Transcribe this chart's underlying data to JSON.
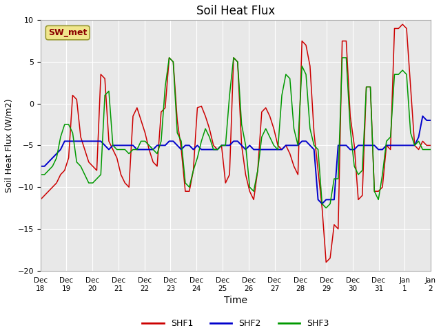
{
  "title": "Soil Heat Flux",
  "xlabel": "Time",
  "ylabel": "Soil Heat Flux (W/m2)",
  "ylim": [
    -20,
    10
  ],
  "background_color": "#e8e8e8",
  "figure_bg": "#ffffff",
  "legend_label": "SW_met",
  "legend_text_color": "#8B0000",
  "legend_box_color": "#f0e68c",
  "series_labels": [
    "SHF1",
    "SHF2",
    "SHF3"
  ],
  "series_colors": [
    "#cc0000",
    "#0000cc",
    "#009900"
  ],
  "xtick_labels": [
    "Dec 18",
    "Dec 19",
    "Dec 20",
    "Dec 21",
    "Dec 22",
    "Dec 23",
    "Dec 24",
    "Dec 25",
    "Dec 26",
    "Dec 27",
    "Dec 28",
    "Dec 29",
    "Dec 30",
    "Dec 31",
    "Jan 1",
    "Jan 2"
  ],
  "shf1": [
    -11.5,
    -11.0,
    -10.5,
    -10.0,
    -9.5,
    -8.5,
    -8.0,
    -6.5,
    1.0,
    0.5,
    -4.0,
    -5.5,
    -7.0,
    -7.5,
    -8.0,
    3.5,
    3.0,
    -4.5,
    -5.5,
    -6.5,
    -8.5,
    -9.5,
    -10.0,
    -1.5,
    -0.5,
    -2.0,
    -3.5,
    -5.5,
    -7.0,
    -7.5,
    -1.0,
    -0.5,
    5.5,
    5.0,
    -2.0,
    -5.5,
    -10.5,
    -10.5,
    -8.0,
    -0.5,
    -0.3,
    -1.5,
    -3.0,
    -5.0,
    -5.5,
    -5.0,
    -9.5,
    -8.5,
    5.5,
    5.0,
    -5.0,
    -8.5,
    -10.5,
    -11.5,
    -8.0,
    -1.0,
    -0.5,
    -1.5,
    -3.0,
    -5.0,
    -5.5,
    -5.0,
    -6.0,
    -7.5,
    -8.5,
    7.5,
    7.0,
    4.5,
    -3.5,
    -8.0,
    -12.5,
    -19.0,
    -18.5,
    -14.5,
    -15.0,
    7.5,
    7.5,
    -1.5,
    -5.0,
    -11.5,
    -11.0,
    2.0,
    2.0,
    -10.5,
    -10.5,
    -10.0,
    -5.0,
    -5.5,
    9.0,
    9.0,
    9.5,
    9.0,
    2.0,
    -5.0,
    -5.5,
    -4.5,
    -5.0,
    -5.0
  ],
  "shf2": [
    -7.5,
    -7.5,
    -7.0,
    -6.5,
    -6.0,
    -5.5,
    -4.5,
    -4.5,
    -4.5,
    -4.5,
    -4.5,
    -4.5,
    -4.5,
    -4.5,
    -4.5,
    -4.5,
    -5.0,
    -5.5,
    -5.0,
    -5.0,
    -5.0,
    -5.0,
    -5.0,
    -5.0,
    -5.5,
    -5.5,
    -5.5,
    -5.5,
    -5.5,
    -5.0,
    -5.0,
    -5.0,
    -4.5,
    -4.5,
    -5.0,
    -5.5,
    -5.0,
    -5.0,
    -5.5,
    -5.0,
    -5.5,
    -5.5,
    -5.5,
    -5.5,
    -5.5,
    -5.0,
    -5.0,
    -5.0,
    -4.5,
    -4.5,
    -5.0,
    -5.5,
    -5.0,
    -5.5,
    -5.5,
    -5.5,
    -5.5,
    -5.5,
    -5.5,
    -5.5,
    -5.5,
    -5.0,
    -5.0,
    -5.0,
    -5.0,
    -4.5,
    -4.5,
    -5.0,
    -5.5,
    -11.5,
    -12.0,
    -11.5,
    -11.5,
    -11.5,
    -5.0,
    -5.0,
    -5.0,
    -5.5,
    -5.5,
    -5.0,
    -5.0,
    -5.0,
    -5.0,
    -5.0,
    -5.5,
    -5.5,
    -5.0,
    -5.0,
    -5.0,
    -5.0,
    -5.0,
    -5.0,
    -5.0,
    -5.0,
    -4.0,
    -1.5,
    -2.0,
    -2.0
  ],
  "shf3": [
    -8.5,
    -8.5,
    -8.0,
    -7.5,
    -6.5,
    -4.0,
    -2.5,
    -2.5,
    -3.5,
    -7.0,
    -7.5,
    -8.5,
    -9.5,
    -9.5,
    -9.0,
    -8.5,
    1.0,
    1.5,
    -5.0,
    -5.5,
    -5.5,
    -5.5,
    -6.0,
    -5.5,
    -5.5,
    -4.5,
    -4.5,
    -5.0,
    -5.5,
    -6.0,
    -4.5,
    2.0,
    5.5,
    5.0,
    -3.5,
    -4.5,
    -9.5,
    -10.0,
    -8.0,
    -6.5,
    -4.5,
    -3.0,
    -4.0,
    -5.5,
    -5.5,
    -5.0,
    -5.0,
    1.0,
    5.5,
    5.0,
    -2.5,
    -5.0,
    -10.0,
    -10.5,
    -8.0,
    -4.0,
    -3.0,
    -4.0,
    -5.0,
    -5.5,
    1.0,
    3.5,
    3.0,
    -3.0,
    -5.0,
    4.5,
    3.5,
    -3.0,
    -5.0,
    -5.5,
    -12.0,
    -12.5,
    -12.0,
    -9.0,
    -9.0,
    5.5,
    5.5,
    -3.0,
    -7.5,
    -8.5,
    -8.0,
    2.0,
    2.0,
    -10.5,
    -11.5,
    -8.5,
    -4.5,
    -4.0,
    3.5,
    3.5,
    4.0,
    3.5,
    -3.5,
    -5.0,
    -4.5,
    -5.5,
    -5.5,
    -5.5
  ]
}
